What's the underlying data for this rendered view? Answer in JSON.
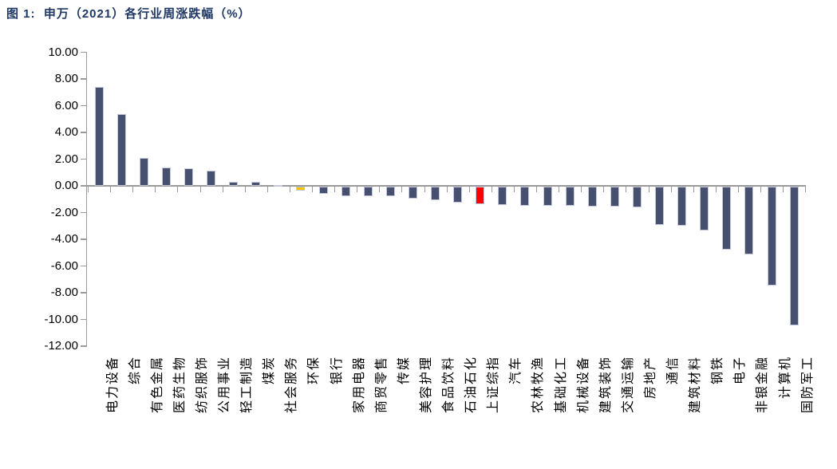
{
  "title": "图 1:  申万（2021）各行业周涨跌幅（%）",
  "colors": {
    "title_text": "#1f3864",
    "axis": "#9a9a9a",
    "bar_default": "#47506e",
    "bar_border": "#c3c8da",
    "highlight_yellow": "#ffc000",
    "highlight_red": "#ff0000"
  },
  "chart_data": {
    "type": "bar",
    "title": "图 1: 申万（2021）各行业周涨跌幅（%）",
    "xlabel": "",
    "ylabel": "",
    "ylim": [
      -12,
      10
    ],
    "yticks": [
      10,
      8,
      6,
      4,
      2,
      0,
      -2,
      -4,
      -6,
      -8,
      -10,
      -12
    ],
    "ytick_format": "0.00",
    "grid": false,
    "legend": "none",
    "categories": [
      "电力设备",
      "综合",
      "有色金属",
      "医药生物",
      "纺织服饰",
      "公用事业",
      "轻工制造",
      "煤炭",
      "社会服务",
      "环保",
      "银行",
      "家用电器",
      "商贸零售",
      "传媒",
      "美容护理",
      "食品饮料",
      "石油石化",
      "上证综指",
      "汽车",
      "农林牧渔",
      "基础化工",
      "机械设备",
      "建筑装饰",
      "交通运输",
      "房地产",
      "通信",
      "建筑材料",
      "钢铁",
      "电子",
      "非银金融",
      "计算机",
      "国防军工"
    ],
    "values": [
      7.4,
      5.4,
      2.1,
      1.35,
      1.3,
      1.15,
      0.3,
      0.3,
      0.05,
      -0.3,
      -0.55,
      -0.7,
      -0.73,
      -0.75,
      -0.9,
      -1.05,
      -1.2,
      -1.3,
      -1.4,
      -1.43,
      -1.45,
      -1.45,
      -1.5,
      -1.53,
      -1.55,
      -2.85,
      -2.95,
      -3.3,
      -4.7,
      -5.1,
      -7.4,
      -10.4
    ],
    "bar_color_default": "#47506e",
    "highlight_bars": [
      {
        "category": "环保",
        "color": "#ffc000"
      },
      {
        "category": "上证综指",
        "color": "#ff0000"
      }
    ]
  }
}
